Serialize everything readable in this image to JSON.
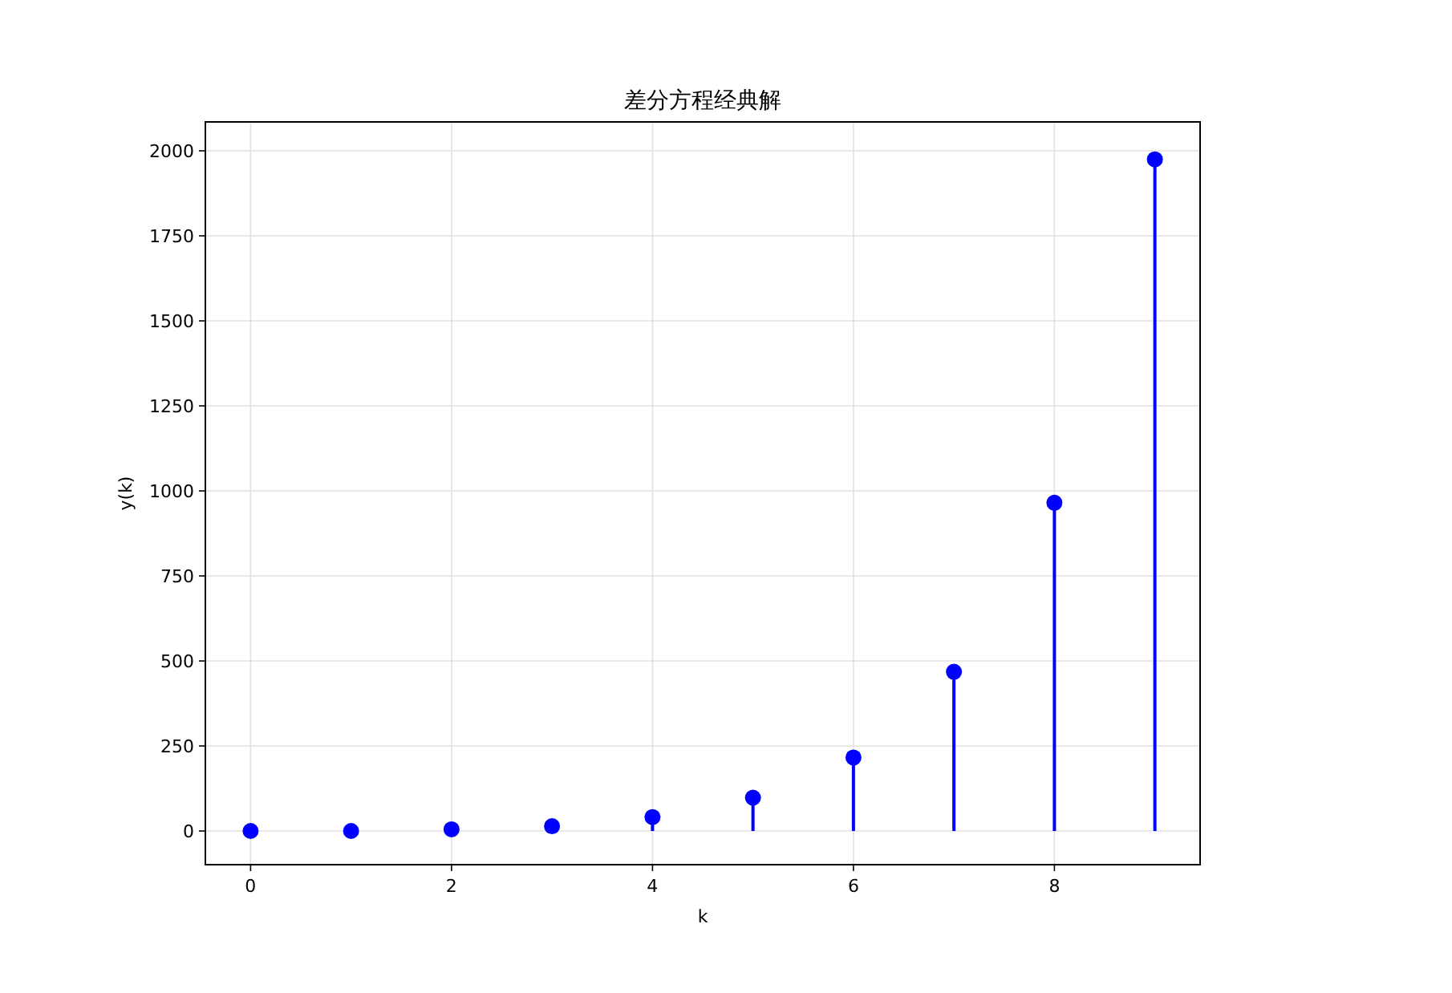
{
  "chart_data": {
    "type": "lollipop",
    "title": "差分方程经典解",
    "xlabel": "k",
    "ylabel": "y(k)",
    "x": [
      0,
      1,
      2,
      3,
      4,
      5,
      6,
      7,
      8,
      9
    ],
    "series": [
      {
        "color": "#0000ff",
        "values": [
          0,
          0,
          5,
          14,
          41,
          98,
          216,
          468,
          965,
          1975
        ]
      }
    ],
    "xlim": [
      -0.45,
      9.45
    ],
    "ylim": [
      -99,
      2085
    ],
    "xticks": [
      0,
      2,
      4,
      6,
      8
    ],
    "yticks": [
      0,
      250,
      500,
      750,
      1000,
      1250,
      1500,
      1750,
      2000
    ],
    "grid": true,
    "marker": "circle"
  }
}
